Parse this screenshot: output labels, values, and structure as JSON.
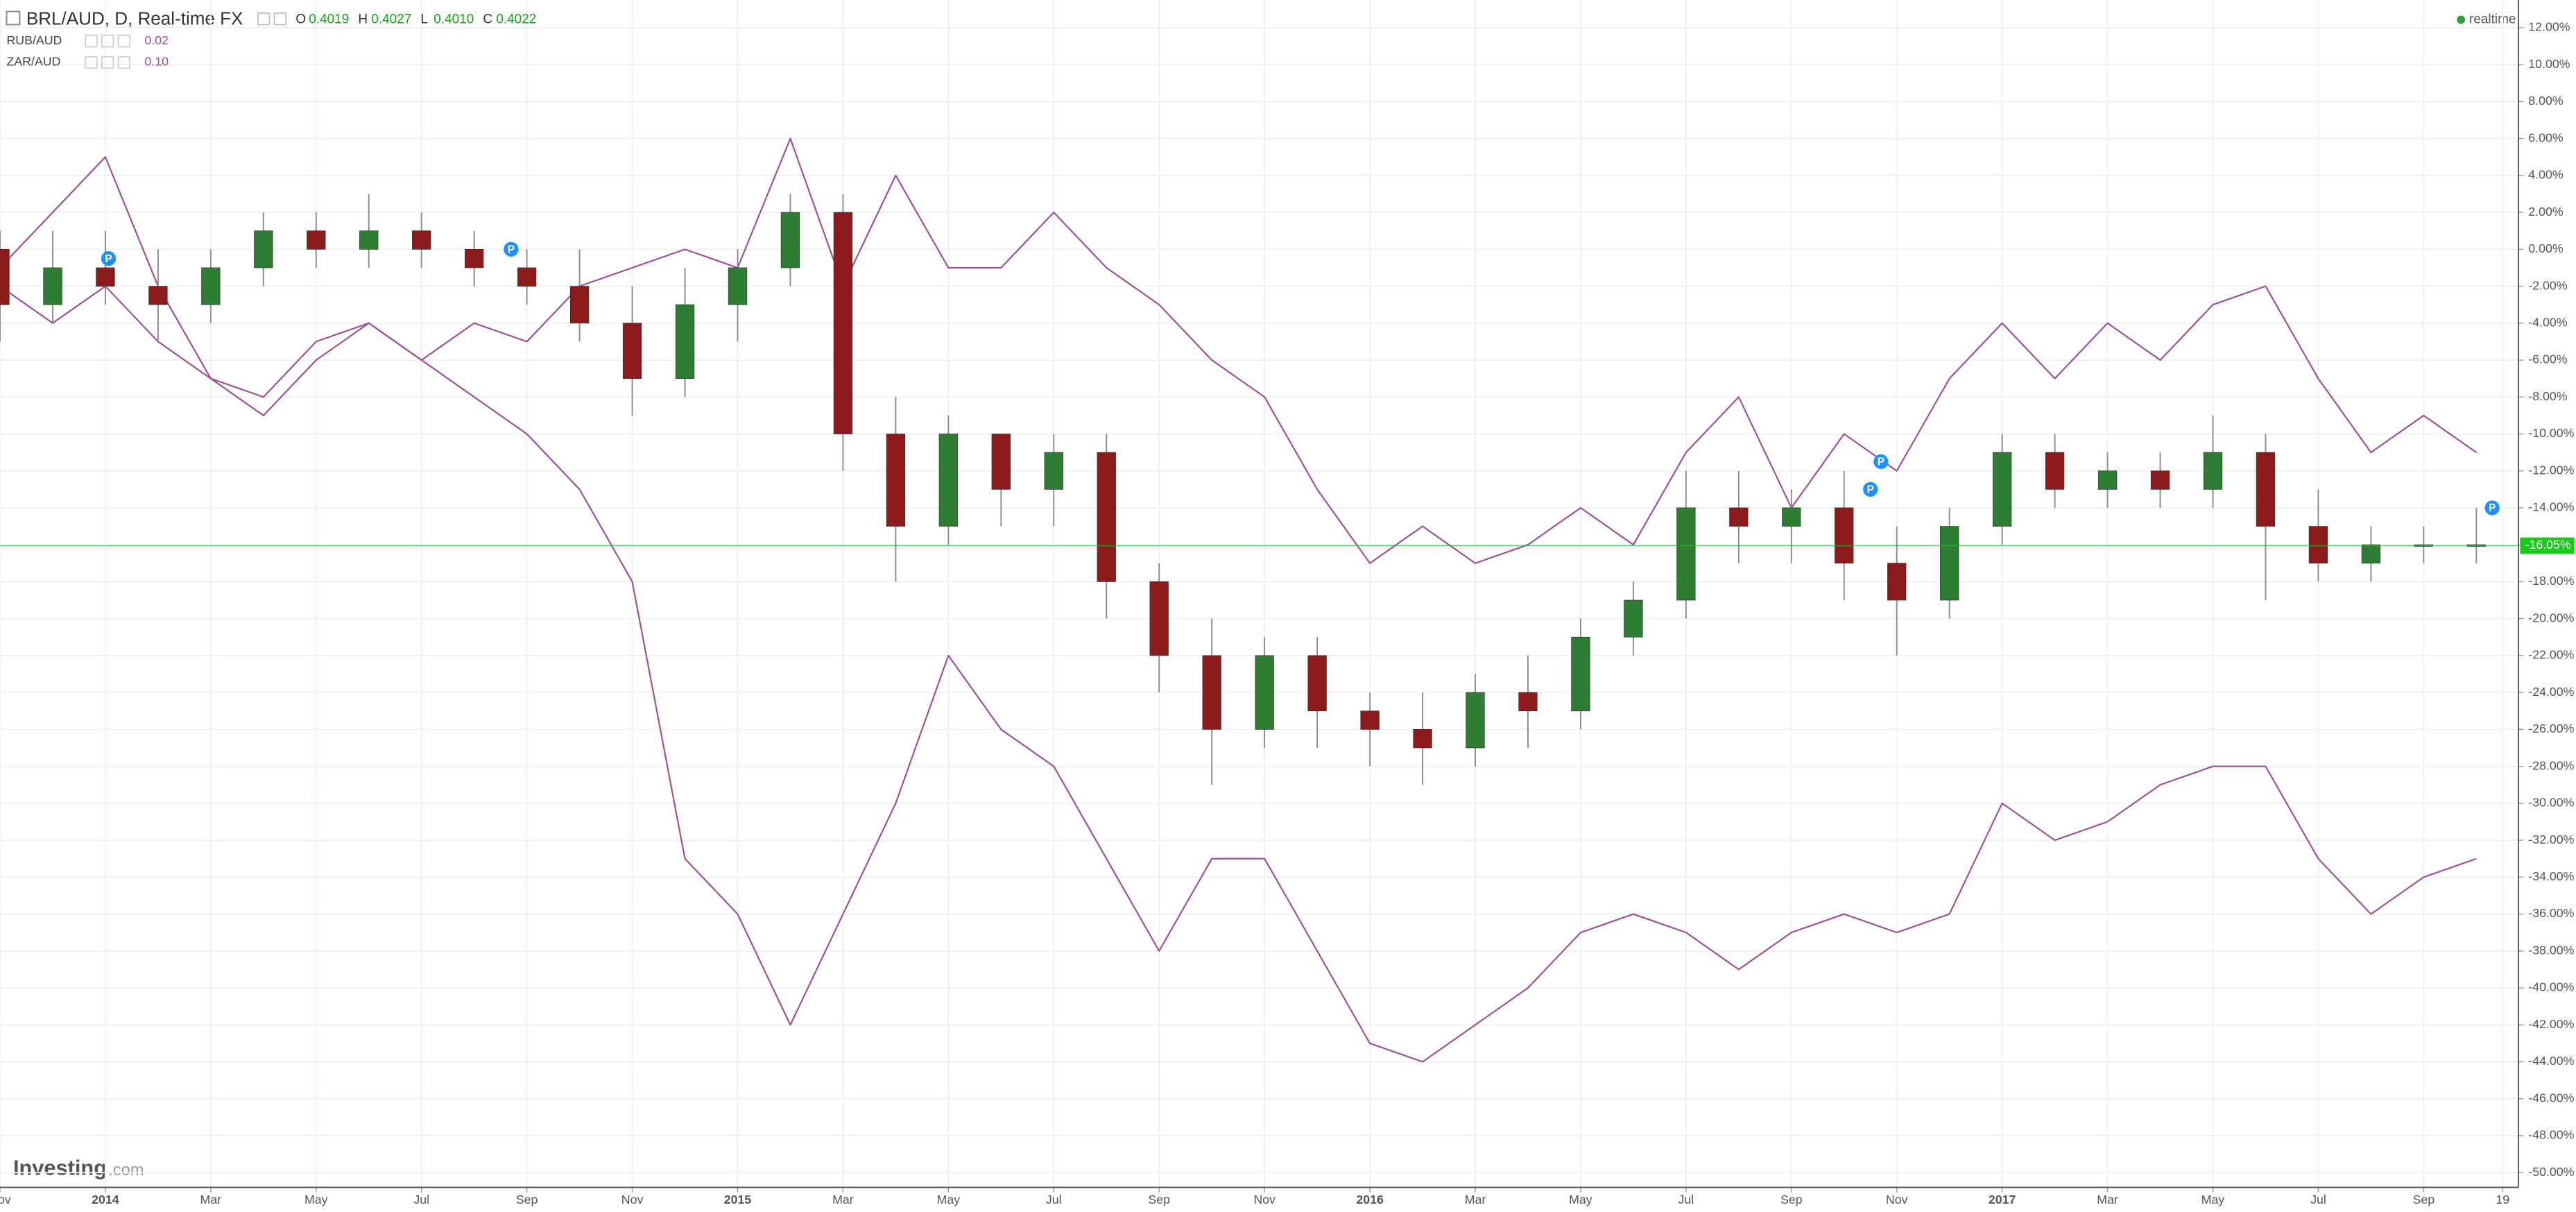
{
  "chart_data": {
    "type": "candlestick",
    "title": "BRL/AUD, D, Real-time FX",
    "ohlc": [
      {
        "key": "O",
        "value": "0.4019"
      },
      {
        "key": "H",
        "value": "0.4027"
      },
      {
        "key": "L",
        "value": "0.4010"
      },
      {
        "key": "C",
        "value": "0.4022"
      }
    ],
    "status": "realtime",
    "logo": {
      "brand": "Investing",
      "suffix": ".com"
    },
    "grid": true,
    "x": [
      0,
      1,
      2,
      3,
      4,
      5,
      6,
      7,
      8,
      9,
      10,
      11,
      12,
      13,
      14,
      15,
      16,
      17,
      18,
      19,
      20,
      21,
      22,
      23,
      24,
      25,
      26,
      27,
      28,
      29,
      30,
      31,
      32,
      33,
      34,
      35,
      36,
      37,
      38,
      39,
      40,
      41,
      42,
      43,
      44,
      45,
      46,
      47
    ],
    "xlim": [
      0,
      47.8
    ],
    "xticks": [
      {
        "value": 0,
        "label": "Nov"
      },
      {
        "value": 2,
        "label": "2014",
        "major": true
      },
      {
        "value": 4,
        "label": "Mar"
      },
      {
        "value": 6,
        "label": "May"
      },
      {
        "value": 8,
        "label": "Jul"
      },
      {
        "value": 10,
        "label": "Sep"
      },
      {
        "value": 12,
        "label": "Nov"
      },
      {
        "value": 14,
        "label": "2015",
        "major": true
      },
      {
        "value": 16,
        "label": "Mar"
      },
      {
        "value": 18,
        "label": "May"
      },
      {
        "value": 20,
        "label": "Jul"
      },
      {
        "value": 22,
        "label": "Sep"
      },
      {
        "value": 24,
        "label": "Nov"
      },
      {
        "value": 26,
        "label": "2016",
        "major": true
      },
      {
        "value": 28,
        "label": "Mar"
      },
      {
        "value": 30,
        "label": "May"
      },
      {
        "value": 32,
        "label": "Jul"
      },
      {
        "value": 34,
        "label": "Sep"
      },
      {
        "value": 36,
        "label": "Nov"
      },
      {
        "value": 38,
        "label": "2017",
        "major": true
      },
      {
        "value": 40,
        "label": "Mar"
      },
      {
        "value": 42,
        "label": "May"
      },
      {
        "value": 44,
        "label": "Jul"
      },
      {
        "value": 46,
        "label": "Sep"
      },
      {
        "value": 47.5,
        "label": "19"
      }
    ],
    "ylim": [
      -50.8,
      13.5
    ],
    "yticks": [
      {
        "value": 12,
        "label": "12.00%"
      },
      {
        "value": 10,
        "label": "10.00%"
      },
      {
        "value": 8,
        "label": "8.00%"
      },
      {
        "value": 6,
        "label": "6.00%"
      },
      {
        "value": 4,
        "label": "4.00%"
      },
      {
        "value": 2,
        "label": "2.00%"
      },
      {
        "value": 0,
        "label": "0.00%"
      },
      {
        "value": -2,
        "label": "-2.00%"
      },
      {
        "value": -4,
        "label": "-4.00%"
      },
      {
        "value": -6,
        "label": "-6.00%"
      },
      {
        "value": -8,
        "label": "-8.00%"
      },
      {
        "value": -10,
        "label": "-10.00%"
      },
      {
        "value": -12,
        "label": "-12.00%"
      },
      {
        "value": -14,
        "label": "-14.00%"
      },
      {
        "value": -16,
        "label": "-16.00%"
      },
      {
        "value": -18,
        "label": "-18.00%"
      },
      {
        "value": -20,
        "label": "-20.00%"
      },
      {
        "value": -22,
        "label": "-22.00%"
      },
      {
        "value": -24,
        "label": "-24.00%"
      },
      {
        "value": -26,
        "label": "-26.00%"
      },
      {
        "value": -28,
        "label": "-28.00%"
      },
      {
        "value": -30,
        "label": "-30.00%"
      },
      {
        "value": -32,
        "label": "-32.00%"
      },
      {
        "value": -34,
        "label": "-34.00%"
      },
      {
        "value": -36,
        "label": "-36.00%"
      },
      {
        "value": -38,
        "label": "-38.00%"
      },
      {
        "value": -40,
        "label": "-40.00%"
      },
      {
        "value": -42,
        "label": "-42.00%"
      },
      {
        "value": -44,
        "label": "-44.00%"
      },
      {
        "value": -46,
        "label": "-46.00%"
      },
      {
        "value": -48,
        "label": "-48.00%"
      },
      {
        "value": -50,
        "label": "-50.00%"
      }
    ],
    "candles": {
      "name": "BRL/AUD",
      "up_color": "#2f7d32",
      "down_color": "#8e1b1b",
      "wick_color": "#8a8a8a",
      "open": [
        0,
        -3,
        -1,
        -2,
        -3,
        -1,
        1,
        0,
        1,
        0,
        -1,
        -2,
        -4,
        -7,
        -3,
        -1,
        2,
        -10,
        -15,
        -10,
        -13,
        -11,
        -18,
        -22,
        -26,
        -22,
        -25,
        -26,
        -27,
        -24,
        -25,
        -21,
        -19,
        -14,
        -15,
        -14,
        -17,
        -19,
        -15,
        -11,
        -13,
        -12,
        -13,
        -11,
        -15,
        -17,
        -16,
        -16
      ],
      "high": [
        1,
        1,
        1,
        0,
        0,
        2,
        2,
        3,
        2,
        1,
        0,
        0,
        -2,
        -1,
        0,
        3,
        3,
        -8,
        -9,
        -10,
        -10,
        -10,
        -17,
        -20,
        -21,
        -21,
        -24,
        -24,
        -23,
        -22,
        -20,
        -18,
        -12,
        -12,
        -13,
        -12,
        -15,
        -14,
        -10,
        -10,
        -11,
        -11,
        -9,
        -10,
        -13,
        -15,
        -15,
        -14
      ],
      "low": [
        -5,
        -4,
        -3,
        -5,
        -4,
        -2,
        -1,
        -1,
        -1,
        -2,
        -3,
        -5,
        -9,
        -8,
        -5,
        -2,
        -12,
        -18,
        -16,
        -15,
        -15,
        -20,
        -24,
        -29,
        -27,
        -27,
        -28,
        -29,
        -28,
        -27,
        -26,
        -22,
        -20,
        -17,
        -17,
        -19,
        -22,
        -20,
        -16,
        -14,
        -14,
        -14,
        -14,
        -19,
        -18,
        -18,
        -17,
        -17
      ],
      "close": [
        -3,
        -1,
        -2,
        -3,
        -1,
        1,
        0,
        1,
        0,
        -1,
        -2,
        -4,
        -7,
        -3,
        -1,
        2,
        -10,
        -15,
        -10,
        -13,
        -11,
        -18,
        -22,
        -26,
        -22,
        -25,
        -26,
        -27,
        -24,
        -25,
        -21,
        -19,
        -14,
        -15,
        -14,
        -17,
        -19,
        -15,
        -11,
        -13,
        -12,
        -13,
        -11,
        -15,
        -17,
        -16,
        -16,
        -16
      ]
    },
    "series": [
      {
        "name": "RUB/AUD",
        "type": "line",
        "color": "#9c4d96",
        "legend_value": "0.02",
        "values": [
          -2,
          -4,
          -2,
          -5,
          -7,
          -8,
          -5,
          -4,
          -6,
          -8,
          -10,
          -13,
          -18,
          -33,
          -36,
          -42,
          -36,
          -30,
          -22,
          -26,
          -28,
          -33,
          -38,
          -33,
          -33,
          -38,
          -43,
          -44,
          -42,
          -40,
          -37,
          -36,
          -37,
          -39,
          -37,
          -36,
          -37,
          -36,
          -30,
          -32,
          -31,
          -29,
          -28,
          -28,
          -33,
          -36,
          -34,
          -33
        ]
      },
      {
        "name": "ZAR/AUD",
        "type": "line",
        "color": "#9c4d96",
        "legend_value": "0.10",
        "values": [
          -1,
          2,
          5,
          -2,
          -7,
          -9,
          -6,
          -4,
          -6,
          -4,
          -5,
          -2,
          -1,
          0,
          -1,
          6,
          -2,
          4,
          -1,
          -1,
          2,
          -1,
          -3,
          -6,
          -8,
          -13,
          -17,
          -15,
          -17,
          -16,
          -14,
          -16,
          -11,
          -8,
          -14,
          -10,
          -12,
          -7,
          -4,
          -7,
          -4,
          -6,
          -3,
          -2,
          -7,
          -11,
          -9,
          -11
        ]
      }
    ],
    "last": {
      "value": -16.05,
      "label": "-16.05%",
      "color": "#19c819"
    },
    "markers": [
      {
        "x": 2.06,
        "y": -0.5,
        "label": "P"
      },
      {
        "x": 9.7,
        "y": 0,
        "label": "P"
      },
      {
        "x": 35.5,
        "y": -13,
        "label": "P"
      },
      {
        "x": 35.7,
        "y": -11.5,
        "label": "P"
      },
      {
        "x": 47.3,
        "y": -14,
        "label": "P"
      }
    ]
  }
}
